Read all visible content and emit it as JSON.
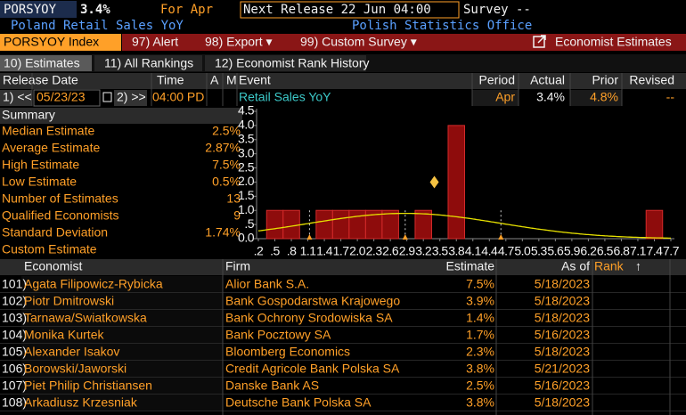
{
  "header": {
    "ticker": "PORSYOY",
    "value": "3.4%",
    "for": "For Apr",
    "next_release": "Next Release 22 Jun 04:00",
    "survey": "Survey --",
    "name": "Poland Retail Sales YoY",
    "source": "Polish Statistics Office"
  },
  "toolbar": {
    "index": "PORSYOY Index",
    "buttons": [
      "97) Alert",
      "98) Export ▾",
      "99) Custom Survey ▾"
    ],
    "title": "Economist Estimates"
  },
  "tabs": [
    "10) Estimates",
    "11) All Rankings",
    "12) Economist Rank History"
  ],
  "release": {
    "columns": [
      "Release Date",
      "Time",
      "A",
      "M",
      "Event",
      "Period",
      "Actual",
      "Prior",
      "Revised"
    ],
    "prev": "1) <<",
    "date": "05/23/23",
    "next": "2) >>",
    "time": "04:00 PD",
    "event": "Retail Sales YoY",
    "period": "Apr",
    "actual": "3.4%",
    "prior": "4.8%",
    "revised": "--"
  },
  "summary": {
    "title": "Summary",
    "rows": [
      [
        "Median Estimate",
        "2.5%"
      ],
      [
        "Average Estimate",
        "2.87%"
      ],
      [
        "High Estimate",
        "7.5%"
      ],
      [
        "Low Estimate",
        "0.5%"
      ],
      [
        "Number of Estimates",
        "13"
      ],
      [
        "Qualified Economists",
        "9"
      ],
      [
        "Standard Deviation",
        "1.74%"
      ],
      [
        "Custom Estimate"
      ]
    ]
  },
  "chart_data": {
    "type": "histogram",
    "bins": [
      0.35,
      0.65,
      0.95,
      1.25,
      1.55,
      1.85,
      2.15,
      2.45,
      2.75,
      3.05,
      3.35,
      3.65,
      3.95,
      4.25,
      4.55,
      4.85,
      5.15,
      5.45,
      5.75,
      6.05,
      6.35,
      6.65,
      6.95,
      7.25,
      7.55
    ],
    "counts": [
      1,
      1,
      0,
      1,
      1,
      1,
      1,
      1,
      0,
      1,
      0,
      4,
      0,
      0,
      0,
      0,
      0,
      0,
      0,
      0,
      0,
      0,
      0,
      1
    ],
    "color": "#8e0c0c",
    "edge_color": "#d42a2a",
    "curve_color": "#e6e000",
    "marker_color": "#f5c242",
    "mean": 2.87,
    "std": 1.74,
    "actual": {
      "x": 3.4,
      "y": 2
    },
    "xlim": [
      0.2,
      7.7
    ],
    "xticks": [
      {
        "value": 0.2,
        "label": ".2"
      },
      {
        "value": 0.5,
        "label": ".5"
      },
      {
        "value": 0.8,
        "label": ".8"
      },
      1.1,
      1.4,
      1.7,
      {
        "value": 2,
        "label": "2.0"
      },
      2.3,
      2.6,
      2.9,
      3.2,
      3.5,
      3.8,
      4.1,
      4.4,
      4.7,
      {
        "value": 5,
        "label": "5.0"
      },
      5.3,
      5.6,
      5.9,
      6.2,
      6.5,
      6.8,
      7.1,
      7.4,
      7.7
    ],
    "ylim": [
      0,
      4.5
    ],
    "yticks": [
      {
        "value": 0,
        "label": "0.0"
      },
      {
        "value": 0.5,
        "label": ".5"
      },
      {
        "value": 1,
        "label": "1.0"
      },
      1.5,
      {
        "value": 2,
        "label": "2.0"
      },
      2.5,
      {
        "value": 3,
        "label": "3.0"
      },
      3.5,
      {
        "value": 4,
        "label": "4.0"
      },
      4.5
    ],
    "grid": false
  },
  "table": {
    "columns": [
      "Economist",
      "Firm",
      "Estimate",
      "As of",
      "Rank",
      "↑"
    ],
    "rows": [
      [
        "101)",
        "Agata Filipowicz-Rybicka",
        "Alior Bank S.A.",
        "7.5%",
        "5/18/2023"
      ],
      [
        "102)",
        "Piotr Dmitrowski",
        "Bank Gospodarstwa Krajowego",
        "3.9%",
        "5/18/2023"
      ],
      [
        "103)",
        "Tarnawa/Swiatkowska",
        "Bank Ochrony Srodowiska SA",
        "1.4%",
        "5/18/2023"
      ],
      [
        "104)",
        "Monika Kurtek",
        "Bank Pocztowy SA",
        "1.7%",
        "5/16/2023"
      ],
      [
        "105)",
        "Alexander Isakov",
        "Bloomberg Economics",
        "2.3%",
        "5/18/2023"
      ],
      [
        "106)",
        "Borowski/Jaworski",
        "Credit Agricole Bank Polska SA",
        "3.8%",
        "5/21/2023"
      ],
      [
        "107)",
        "Piet Philip Christiansen",
        "Danske Bank AS",
        "2.5%",
        "5/16/2023"
      ],
      [
        "108)",
        "Arkadiusz Krzesniak",
        "Deutsche Bank Polska SA",
        "3.8%",
        "5/18/2023"
      ]
    ]
  }
}
